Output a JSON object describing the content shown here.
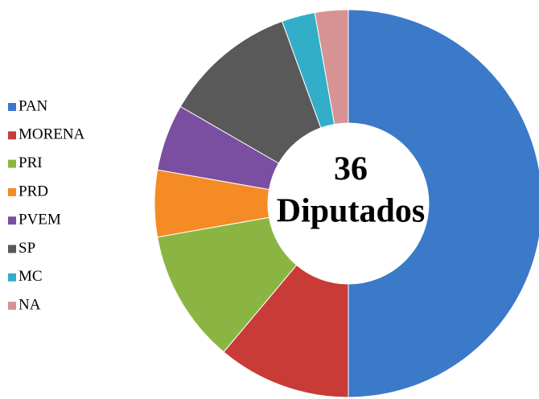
{
  "chart_data": {
    "type": "donut",
    "categories": [
      "PAN",
      "MORENA",
      "PRI",
      "PRD",
      "PVEM",
      "SP",
      "MC",
      "NA"
    ],
    "values": [
      18,
      4,
      4,
      2,
      2,
      4,
      1,
      1
    ],
    "colors": [
      "#3b79c9",
      "#c93b37",
      "#8bb542",
      "#f58b25",
      "#7a4fa1",
      "#595959",
      "#33aec8",
      "#d69392"
    ],
    "center_value": 36,
    "center_label": "Diputados",
    "legend": "left"
  }
}
